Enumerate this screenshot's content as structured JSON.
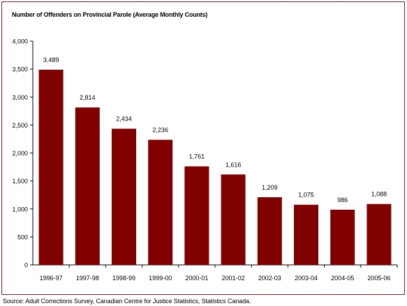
{
  "chart_data": {
    "type": "bar",
    "title": "Number of Offenders on Provincial Parole (Average Monthly Counts)",
    "categories": [
      "1996-97",
      "1997-98",
      "1998-99",
      "1999-00",
      "2000-01",
      "2001-02",
      "2002-03",
      "2003-04",
      "2004-05",
      "2005-06"
    ],
    "values": [
      3489,
      2814,
      2434,
      2236,
      1761,
      1616,
      1209,
      1075,
      986,
      1088
    ],
    "value_labels": [
      "3,489",
      "2,814",
      "2,434",
      "2,236",
      "1,761",
      "1,616",
      "1,209",
      "1,075",
      "986",
      "1,088"
    ],
    "yticks": [
      0,
      500,
      1000,
      1500,
      2000,
      2500,
      3000,
      3500,
      4000
    ],
    "ytick_labels": [
      "0",
      "500",
      "1,000",
      "1,500",
      "2,000",
      "2,500",
      "3,000",
      "3,500",
      "4,000"
    ],
    "ylim": [
      0,
      4000
    ],
    "xlabel": "",
    "ylabel": "",
    "grid": false,
    "legend": "none",
    "bar_color": "#800000"
  },
  "source": "Source:  Adult Corrections Survey, Canadian Centre for Justice Statistics, Statistics Canada."
}
